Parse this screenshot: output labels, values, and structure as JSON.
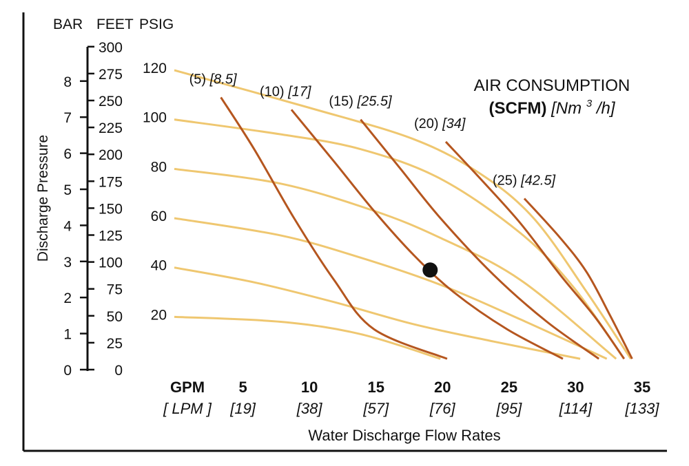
{
  "chart_data": {
    "type": "line",
    "title": "AIR CONSUMPTION",
    "subtitle_bold": "(SCFM)",
    "subtitle_italic": "[Nm",
    "subtitle_sup": "3",
    "subtitle_tail": "/h]",
    "ylabel": "Discharge Pressure",
    "xlabel": "Water Discharge Flow Rates",
    "x_unit": "GPM",
    "x_unit_alt": "[ LPM ]",
    "y_units": [
      "BAR",
      "FEET",
      "PSIG"
    ],
    "xlim": [
      0,
      35
    ],
    "ylim_psig": [
      0,
      130
    ],
    "x_ticks": [
      {
        "gpm": "5",
        "lpm": "[19]"
      },
      {
        "gpm": "10",
        "lpm": "[38]"
      },
      {
        "gpm": "15",
        "lpm": "[57]"
      },
      {
        "gpm": "20",
        "lpm": "[76]"
      },
      {
        "gpm": "25",
        "lpm": "[95]"
      },
      {
        "gpm": "30",
        "lpm": "[114]"
      },
      {
        "gpm": "35",
        "lpm": "[133]"
      }
    ],
    "bar_ticks": [
      "0",
      "1",
      "2",
      "3",
      "4",
      "5",
      "6",
      "7",
      "8"
    ],
    "feet_ticks": [
      "0",
      "25",
      "50",
      "75",
      "100",
      "125",
      "150",
      "175",
      "200",
      "225",
      "250",
      "275",
      "300"
    ],
    "psig_ticks": [
      "20",
      "40",
      "60",
      "80",
      "100",
      "120"
    ],
    "psig_curves": [
      {
        "psig": 120,
        "points": [
          [
            0,
            120
          ],
          [
            10,
            105
          ],
          [
            18,
            92
          ],
          [
            23,
            78
          ],
          [
            27,
            60
          ],
          [
            31,
            30
          ],
          [
            34.3,
            3
          ]
        ]
      },
      {
        "psig": 100,
        "points": [
          [
            0,
            100
          ],
          [
            8,
            94
          ],
          [
            14,
            88
          ],
          [
            20,
            76
          ],
          [
            26,
            54
          ],
          [
            30,
            32
          ],
          [
            33.8,
            3
          ]
        ]
      },
      {
        "psig": 80,
        "points": [
          [
            0,
            80
          ],
          [
            8,
            74
          ],
          [
            15,
            63
          ],
          [
            20,
            52
          ],
          [
            26,
            35
          ],
          [
            33.2,
            3
          ]
        ]
      },
      {
        "psig": 60,
        "points": [
          [
            0,
            60
          ],
          [
            8,
            53
          ],
          [
            14,
            44
          ],
          [
            20,
            33
          ],
          [
            26,
            19
          ],
          [
            32.5,
            3
          ]
        ]
      },
      {
        "psig": 40,
        "points": [
          [
            0,
            40
          ],
          [
            6,
            34
          ],
          [
            12,
            26
          ],
          [
            18,
            17
          ],
          [
            24,
            10
          ],
          [
            30.5,
            3
          ]
        ]
      },
      {
        "psig": 20,
        "points": [
          [
            0,
            20
          ],
          [
            8,
            18
          ],
          [
            14,
            13
          ],
          [
            20,
            3
          ]
        ]
      }
    ],
    "scfm_curves": [
      {
        "label": "(5)",
        "label_alt": "[8.5]",
        "points": [
          [
            3.5,
            109
          ],
          [
            6,
            88
          ],
          [
            9,
            60
          ],
          [
            12,
            35
          ],
          [
            15,
            15
          ],
          [
            20.5,
            3
          ]
        ]
      },
      {
        "label": "(10)",
        "label_alt": "[17]",
        "points": [
          [
            8.8,
            104
          ],
          [
            12,
            83
          ],
          [
            15,
            63
          ],
          [
            18,
            45
          ],
          [
            21,
            30
          ],
          [
            25,
            15
          ],
          [
            29.2,
            3
          ]
        ]
      },
      {
        "label": "(15)",
        "label_alt": "[25.5]",
        "points": [
          [
            14,
            100
          ],
          [
            17,
            80
          ],
          [
            20,
            60
          ],
          [
            24,
            37
          ],
          [
            28,
            18
          ],
          [
            31.9,
            3
          ]
        ]
      },
      {
        "label": "(20)",
        "label_alt": "[34]",
        "points": [
          [
            20.4,
            91
          ],
          [
            23,
            76
          ],
          [
            26,
            58
          ],
          [
            29,
            37
          ],
          [
            31.6,
            20
          ],
          [
            33.8,
            3
          ]
        ]
      },
      {
        "label": "(25)",
        "label_alt": "[42.5]",
        "points": [
          [
            26.3,
            68
          ],
          [
            29,
            52
          ],
          [
            31,
            38
          ],
          [
            32.8,
            20
          ],
          [
            34.4,
            3
          ]
        ]
      }
    ],
    "operating_point": {
      "gpm": 20,
      "psig": 39
    }
  }
}
